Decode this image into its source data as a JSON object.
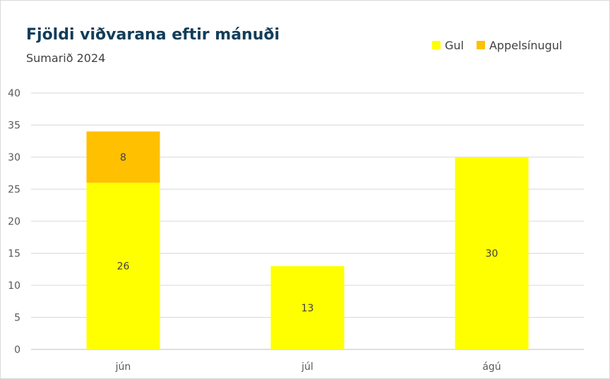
{
  "chart_data": {
    "type": "bar",
    "stacked": true,
    "title": "Fjöldi viðvarana eftir mánuði",
    "subtitle": "Sumarið 2024",
    "categories": [
      "jún",
      "júl",
      "ágú"
    ],
    "series": [
      {
        "name": "Gul",
        "color": "#ffff00",
        "values": [
          26,
          13,
          30
        ]
      },
      {
        "name": "Appelsínugul",
        "color": "#ffc000",
        "values": [
          8,
          0,
          0
        ]
      }
    ],
    "yticks": [
      "0",
      "5",
      "10",
      "15",
      "20",
      "25",
      "30",
      "35",
      "40"
    ],
    "ylim": [
      0,
      40
    ],
    "grid": true,
    "legend_position": "top-right",
    "data_labels": true
  }
}
